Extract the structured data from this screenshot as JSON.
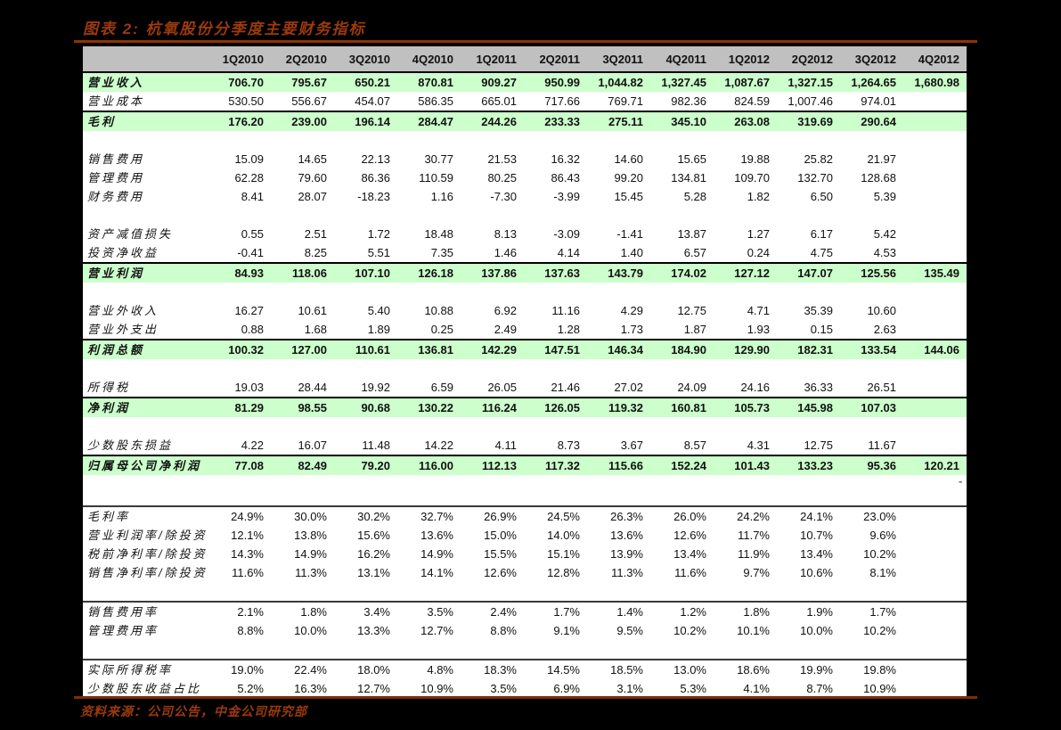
{
  "title": "图表 2: 杭氧股份分季度主要财务指标",
  "footer": "资料来源：公司公告，中金公司研究部",
  "stray_dash": "-",
  "colors": {
    "page_background": "#000000",
    "table_background": "#ffffff",
    "header_gray": "#c0c0c0",
    "highlight_green": "#ccffcc",
    "title_maroon": "#9c3a0c",
    "rule_maroon": "#8e3306"
  },
  "table": {
    "columns": [
      "1Q2010",
      "2Q2010",
      "3Q2010",
      "4Q2010",
      "1Q2011",
      "2Q2011",
      "3Q2011",
      "4Q2011",
      "1Q2012",
      "2Q2012",
      "3Q2012",
      "4Q2012"
    ],
    "rows": [
      {
        "label": "营业收入",
        "type": "highlight",
        "values": [
          "706.70",
          "795.67",
          "650.21",
          "870.81",
          "909.27",
          "950.99",
          "1,044.82",
          "1,327.45",
          "1,087.67",
          "1,327.15",
          "1,264.65",
          "1,680.98"
        ]
      },
      {
        "label": "营业成本",
        "type": "data",
        "values": [
          "530.50",
          "556.67",
          "454.07",
          "586.35",
          "665.01",
          "717.66",
          "769.71",
          "982.36",
          "824.59",
          "1,007.46",
          "974.01",
          ""
        ]
      },
      {
        "label": "毛利",
        "type": "highlight",
        "values": [
          "176.20",
          "239.00",
          "196.14",
          "284.47",
          "244.26",
          "233.33",
          "275.11",
          "345.10",
          "263.08",
          "319.69",
          "290.64",
          ""
        ]
      },
      {
        "type": "blank"
      },
      {
        "label": "销售费用",
        "type": "data",
        "values": [
          "15.09",
          "14.65",
          "22.13",
          "30.77",
          "21.53",
          "16.32",
          "14.60",
          "15.65",
          "19.88",
          "25.82",
          "21.97",
          ""
        ]
      },
      {
        "label": "管理费用",
        "type": "data",
        "values": [
          "62.28",
          "79.60",
          "86.36",
          "110.59",
          "80.25",
          "86.43",
          "99.20",
          "134.81",
          "109.70",
          "132.70",
          "128.68",
          ""
        ]
      },
      {
        "label": "财务费用",
        "type": "data",
        "values": [
          "8.41",
          "28.07",
          "-18.23",
          "1.16",
          "-7.30",
          "-3.99",
          "15.45",
          "5.28",
          "1.82",
          "6.50",
          "5.39",
          ""
        ]
      },
      {
        "type": "blank"
      },
      {
        "label": "资产减值损失",
        "type": "data",
        "values": [
          "0.55",
          "2.51",
          "1.72",
          "18.48",
          "8.13",
          "-3.09",
          "-1.41",
          "13.87",
          "1.27",
          "6.17",
          "5.42",
          ""
        ]
      },
      {
        "label": "投资净收益",
        "type": "data",
        "values": [
          "-0.41",
          "8.25",
          "5.51",
          "7.35",
          "1.46",
          "4.14",
          "1.40",
          "6.57",
          "0.24",
          "4.75",
          "4.53",
          ""
        ]
      },
      {
        "label": "营业利润",
        "type": "highlight",
        "values": [
          "84.93",
          "118.06",
          "107.10",
          "126.18",
          "137.86",
          "137.63",
          "143.79",
          "174.02",
          "127.12",
          "147.07",
          "125.56",
          "135.49"
        ]
      },
      {
        "type": "blank"
      },
      {
        "label": "营业外收入",
        "type": "data",
        "values": [
          "16.27",
          "10.61",
          "5.40",
          "10.88",
          "6.92",
          "11.16",
          "4.29",
          "12.75",
          "4.71",
          "35.39",
          "10.60",
          ""
        ]
      },
      {
        "label": "营业外支出",
        "type": "data",
        "values": [
          "0.88",
          "1.68",
          "1.89",
          "0.25",
          "2.49",
          "1.28",
          "1.73",
          "1.87",
          "1.93",
          "0.15",
          "2.63",
          ""
        ]
      },
      {
        "label": "利润总额",
        "type": "highlight",
        "values": [
          "100.32",
          "127.00",
          "110.61",
          "136.81",
          "142.29",
          "147.51",
          "146.34",
          "184.90",
          "129.90",
          "182.31",
          "133.54",
          "144.06"
        ]
      },
      {
        "type": "blank"
      },
      {
        "label": "所得税",
        "type": "data",
        "values": [
          "19.03",
          "28.44",
          "19.92",
          "6.59",
          "26.05",
          "21.46",
          "27.02",
          "24.09",
          "24.16",
          "36.33",
          "26.51",
          ""
        ]
      },
      {
        "label": "净利润",
        "type": "highlight",
        "values": [
          "81.29",
          "98.55",
          "90.68",
          "130.22",
          "116.24",
          "126.05",
          "119.32",
          "160.81",
          "105.73",
          "145.98",
          "107.03",
          ""
        ]
      },
      {
        "type": "blank"
      },
      {
        "label": "少数股东损益",
        "type": "data",
        "values": [
          "4.22",
          "16.07",
          "11.48",
          "14.22",
          "4.11",
          "8.73",
          "3.67",
          "8.57",
          "4.31",
          "12.75",
          "11.67",
          ""
        ]
      },
      {
        "label": "归属母公司净利润",
        "type": "highlight",
        "values": [
          "77.08",
          "82.49",
          "79.20",
          "116.00",
          "112.13",
          "117.32",
          "115.66",
          "152.24",
          "101.43",
          "133.23",
          "95.36",
          "120.21"
        ]
      },
      {
        "type": "blank"
      },
      {
        "type": "gap"
      },
      {
        "label": "毛利率",
        "type": "data",
        "section": true,
        "values": [
          "24.9%",
          "30.0%",
          "30.2%",
          "32.7%",
          "26.9%",
          "24.5%",
          "26.3%",
          "26.0%",
          "24.2%",
          "24.1%",
          "23.0%",
          ""
        ]
      },
      {
        "label": "营业利润率/除投资",
        "type": "data",
        "values": [
          "12.1%",
          "13.8%",
          "15.6%",
          "13.6%",
          "15.0%",
          "14.0%",
          "13.6%",
          "12.6%",
          "11.7%",
          "10.7%",
          "9.6%",
          ""
        ]
      },
      {
        "label": "税前净利率/除投资",
        "type": "data",
        "values": [
          "14.3%",
          "14.9%",
          "16.2%",
          "14.9%",
          "15.5%",
          "15.1%",
          "13.9%",
          "13.4%",
          "11.9%",
          "13.4%",
          "10.2%",
          ""
        ]
      },
      {
        "label": "销售净利率/除投资",
        "type": "data",
        "values": [
          "11.6%",
          "11.3%",
          "13.1%",
          "14.1%",
          "12.6%",
          "12.8%",
          "11.3%",
          "11.6%",
          "9.7%",
          "10.6%",
          "8.1%",
          ""
        ]
      },
      {
        "type": "blank"
      },
      {
        "label": "销售费用率",
        "type": "data",
        "section": true,
        "values": [
          "2.1%",
          "1.8%",
          "3.4%",
          "3.5%",
          "2.4%",
          "1.7%",
          "1.4%",
          "1.2%",
          "1.8%",
          "1.9%",
          "1.7%",
          ""
        ]
      },
      {
        "label": "管理费用率",
        "type": "data",
        "values": [
          "8.8%",
          "10.0%",
          "13.3%",
          "12.7%",
          "8.8%",
          "9.1%",
          "9.5%",
          "10.2%",
          "10.1%",
          "10.0%",
          "10.2%",
          ""
        ]
      },
      {
        "type": "blank"
      },
      {
        "label": "实际所得税率",
        "type": "data",
        "section": true,
        "values": [
          "19.0%",
          "22.4%",
          "18.0%",
          "4.8%",
          "18.3%",
          "14.5%",
          "18.5%",
          "13.0%",
          "18.6%",
          "19.9%",
          "19.8%",
          ""
        ]
      },
      {
        "label": "少数股东收益占比",
        "type": "data",
        "values": [
          "5.2%",
          "16.3%",
          "12.7%",
          "10.9%",
          "3.5%",
          "6.9%",
          "3.1%",
          "5.3%",
          "4.1%",
          "8.7%",
          "10.9%",
          ""
        ]
      }
    ]
  }
}
